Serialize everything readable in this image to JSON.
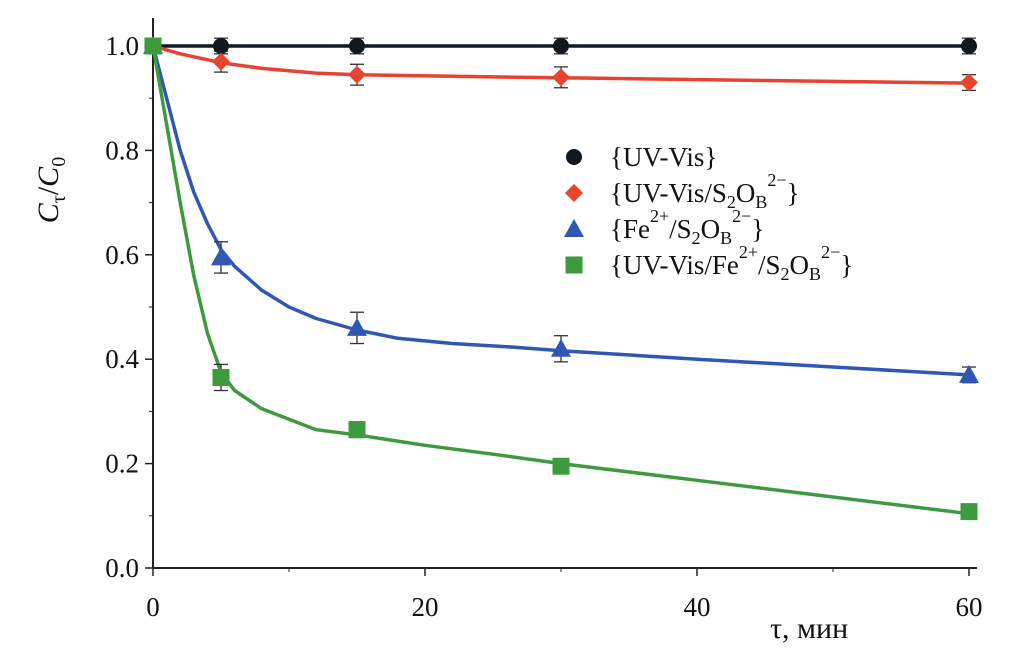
{
  "chart_data": {
    "type": "line",
    "xlabel": "τ, мин",
    "ylabel": "Cτ/C0",
    "xlim": [
      0,
      60
    ],
    "ylim": [
      0,
      1.0
    ],
    "x_ticks": [
      0,
      20,
      40,
      60
    ],
    "y_ticks": [
      "0.0",
      "0.2",
      "0.4",
      "0.6",
      "0.8",
      "1.0"
    ],
    "grid": false,
    "legend_position": "right-middle",
    "x": [
      0,
      5,
      15,
      30,
      60
    ],
    "series": [
      {
        "name": "{UV-Vis}",
        "marker": "circle",
        "color": "#111820",
        "values": [
          1.0,
          1.0,
          1.0,
          1.0,
          1.0
        ],
        "errors": [
          0.015,
          0.015,
          0.015,
          0.015,
          0.015
        ],
        "curve": [
          [
            0,
            1.0
          ],
          [
            5,
            1.0
          ],
          [
            15,
            1.0
          ],
          [
            30,
            1.0
          ],
          [
            60,
            1.0
          ]
        ]
      },
      {
        "name": "{UV-Vis/S2OB2−}",
        "marker": "diamond",
        "color": "#e8432e",
        "values": [
          1.0,
          0.97,
          0.945,
          0.94,
          0.93
        ],
        "errors": [
          0.015,
          0.02,
          0.02,
          0.02,
          0.015
        ],
        "curve": [
          [
            0,
            1.0
          ],
          [
            2,
            0.985
          ],
          [
            5,
            0.968
          ],
          [
            8,
            0.957
          ],
          [
            12,
            0.948
          ],
          [
            15,
            0.945
          ],
          [
            22,
            0.942
          ],
          [
            30,
            0.939
          ],
          [
            45,
            0.934
          ],
          [
            60,
            0.929
          ]
        ]
      },
      {
        "name": "{Fe2+/S2OB2−}",
        "marker": "triangle",
        "color": "#2f57b3",
        "values": [
          1.0,
          0.595,
          0.46,
          0.42,
          0.37
        ],
        "errors": [
          0.015,
          0.03,
          0.03,
          0.025,
          0.015
        ],
        "curve": [
          [
            0,
            1.0
          ],
          [
            1,
            0.9
          ],
          [
            2,
            0.8
          ],
          [
            3,
            0.72
          ],
          [
            4,
            0.66
          ],
          [
            5,
            0.61
          ],
          [
            6,
            0.578
          ],
          [
            8,
            0.532
          ],
          [
            10,
            0.5
          ],
          [
            12,
            0.478
          ],
          [
            15,
            0.456
          ],
          [
            18,
            0.44
          ],
          [
            22,
            0.43
          ],
          [
            26,
            0.424
          ],
          [
            30,
            0.416
          ],
          [
            40,
            0.4
          ],
          [
            50,
            0.385
          ],
          [
            60,
            0.37
          ]
        ]
      },
      {
        "name": "{UV-Vis/Fe2+/S2OB2−}",
        "marker": "square",
        "color": "#3e9a3e",
        "values": [
          1.0,
          0.365,
          0.265,
          0.195,
          0.108
        ],
        "errors": [
          0.015,
          0.025,
          0.015,
          0.01,
          0.01
        ],
        "curve": [
          [
            0,
            1.0
          ],
          [
            1,
            0.85
          ],
          [
            2,
            0.7
          ],
          [
            3,
            0.56
          ],
          [
            4,
            0.45
          ],
          [
            5,
            0.375
          ],
          [
            6,
            0.34
          ],
          [
            8,
            0.305
          ],
          [
            10,
            0.285
          ],
          [
            12,
            0.265
          ],
          [
            15,
            0.255
          ],
          [
            20,
            0.235
          ],
          [
            25,
            0.218
          ],
          [
            30,
            0.2
          ],
          [
            40,
            0.168
          ],
          [
            50,
            0.136
          ],
          [
            60,
            0.104
          ]
        ]
      }
    ]
  }
}
